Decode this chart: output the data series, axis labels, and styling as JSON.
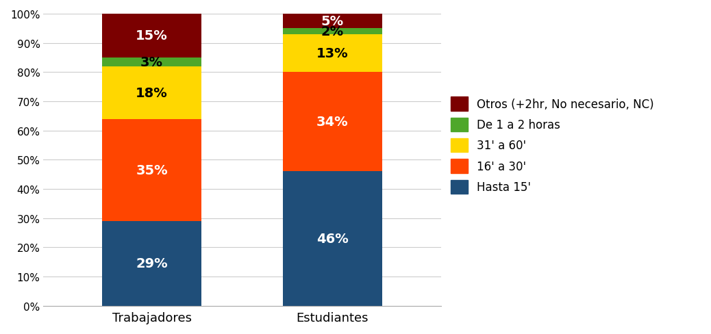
{
  "categories": [
    "Trabajadores",
    "Estudiantes"
  ],
  "series": [
    {
      "label": "Hasta 15'",
      "color": "#1F4E79",
      "values": [
        29,
        46
      ]
    },
    {
      "label": "16' a 30'",
      "color": "#FF4500",
      "values": [
        35,
        34
      ]
    },
    {
      "label": "31' a 60'",
      "color": "#FFD700",
      "values": [
        18,
        13
      ]
    },
    {
      "label": "De 1 a 2 horas",
      "color": "#4EA72A",
      "values": [
        3,
        2
      ]
    },
    {
      "label": "Otros (+2hr, No necesario, NC)",
      "color": "#7B0000",
      "values": [
        15,
        5
      ]
    }
  ],
  "label_colors": {
    "Hasta 15'": "white",
    "16' a 30'": "white",
    "31' a 60'": "black",
    "De 1 a 2 horas": "black",
    "Otros (+2hr, No necesario, NC)": "white"
  },
  "ylim": [
    0,
    100
  ],
  "yticks": [
    0,
    10,
    20,
    30,
    40,
    50,
    60,
    70,
    80,
    90,
    100
  ],
  "ytick_labels": [
    "0%",
    "10%",
    "20%",
    "30%",
    "40%",
    "50%",
    "60%",
    "70%",
    "80%",
    "90%",
    "100%"
  ],
  "bar_width": 0.55,
  "figsize": [
    10.38,
    4.89
  ],
  "dpi": 100,
  "font_size_labels": 14,
  "font_size_ticks": 11,
  "font_size_legend": 12,
  "background_color": "#FFFFFF",
  "grid_color": "#CCCCCC"
}
